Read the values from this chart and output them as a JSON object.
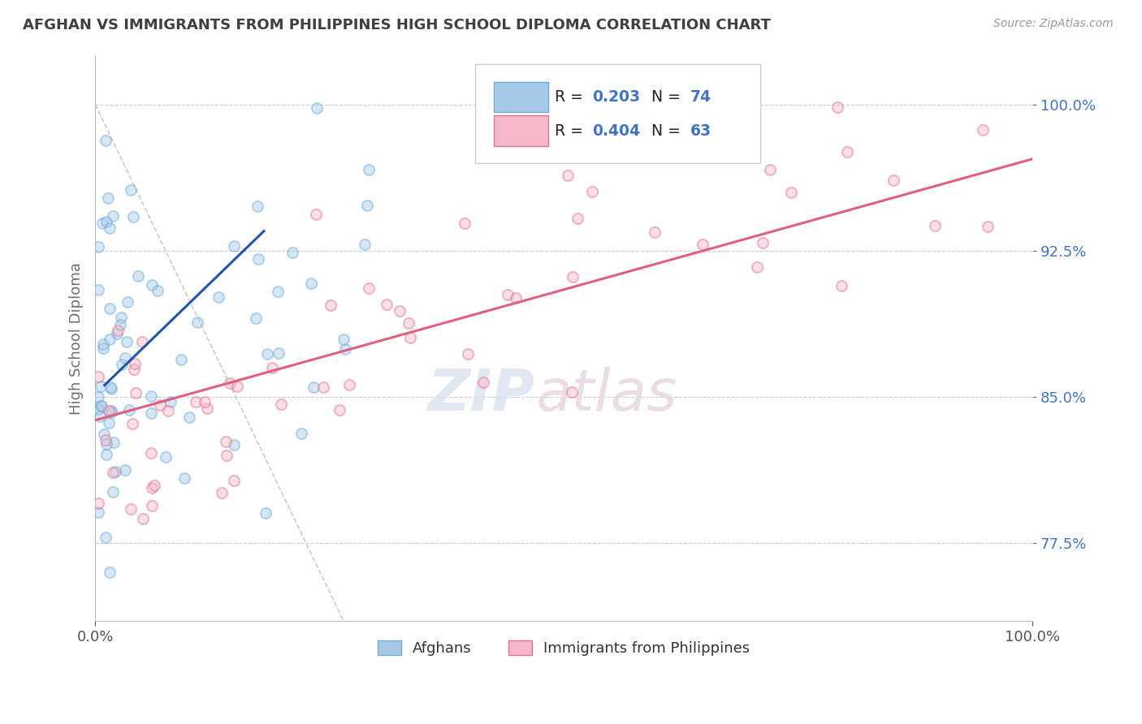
{
  "title": "AFGHAN VS IMMIGRANTS FROM PHILIPPINES HIGH SCHOOL DIPLOMA CORRELATION CHART",
  "source": "Source: ZipAtlas.com",
  "ylabel": "High School Diploma",
  "xlim": [
    0.0,
    1.0
  ],
  "ylim": [
    0.735,
    1.025
  ],
  "yticks": [
    0.775,
    0.85,
    0.925,
    1.0
  ],
  "ytick_labels": [
    "77.5%",
    "85.0%",
    "92.5%",
    "100.0%"
  ],
  "xticks": [
    0.0,
    1.0
  ],
  "xtick_labels": [
    "0.0%",
    "100.0%"
  ],
  "legend_label1": "Afghans",
  "legend_label2": "Immigrants from Philippines",
  "blue_color": "#a8c8e8",
  "blue_edge": "#6baed6",
  "pink_color": "#f4b8c8",
  "pink_edge": "#e07090",
  "trend_blue": "#2255aa",
  "trend_pink": "#e06080",
  "ref_line_color": "#cccccc",
  "blue_trend_x": [
    0.01,
    0.18
  ],
  "blue_trend_y": [
    0.856,
    0.935
  ],
  "pink_trend_x": [
    0.0,
    1.0
  ],
  "pink_trend_y": [
    0.838,
    0.972
  ],
  "watermark_zip": "ZIP",
  "watermark_atlas": "atlas",
  "background_color": "#ffffff",
  "grid_color": "#cccccc",
  "title_color": "#404040",
  "axis_label_color": "#707070",
  "right_tick_color": "#4472c4",
  "legend_text_color": "#222222",
  "legend_value_color": "#4472c4",
  "marker_size": 90,
  "marker_alpha": 0.45,
  "marker_lw": 1.5
}
